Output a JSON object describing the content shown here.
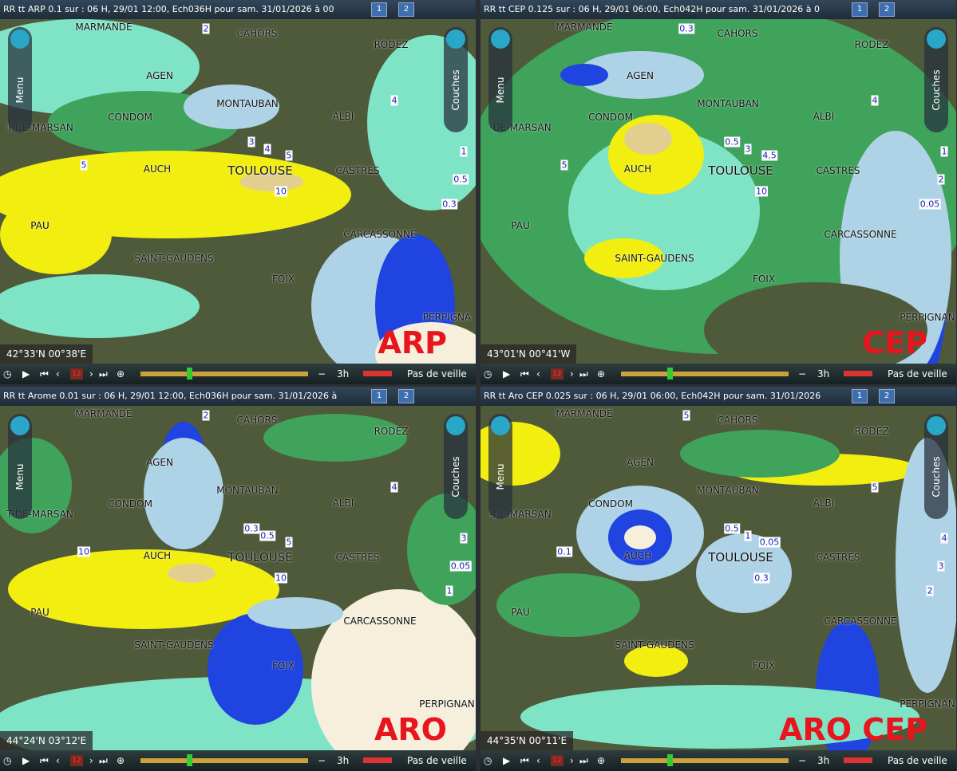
{
  "panels": [
    {
      "title": "RR tt ARP 0.1 sur : 06 H, 29/01 12:00, Ech036H pour sam. 31/01/2026 à 00",
      "window_buttons": [
        "1",
        "2"
      ],
      "menu": "Menu",
      "layers": "Couches",
      "cities": [
        "MARMANDE",
        "CAHORS",
        "RODEZ",
        "AGEN",
        "MONTAUBAN",
        "ALBI",
        "CONDOM",
        "T-DE-MARSAN",
        "AUCH",
        "TOULOUSE",
        "CASTRES",
        "PAU",
        "CARCASSONNE",
        "SAINT-GAUDENS",
        "FOIX",
        "PERPIGNA"
      ],
      "contours": [
        "10",
        "5",
        "4",
        "3",
        "2",
        "0.5",
        "0.3",
        "1",
        "5",
        "4"
      ],
      "coords": "42°33'N 00°38'E",
      "model": "ARP",
      "date_badge": "12",
      "step": "3h",
      "watch": "Pas de veille"
    },
    {
      "title": "RR tt CEP 0.125 sur : 06 H, 29/01 06:00, Ech042H pour sam. 31/01/2026 à 0",
      "window_buttons": [
        "1",
        "2"
      ],
      "menu": "Menu",
      "layers": "Couches",
      "cities": [
        "MARMANDE",
        "CAHORS",
        "RODEZ",
        "AGEN",
        "MONTAUBAN",
        "ALBI",
        "CONDOM",
        "-DE-MARSAN",
        "AUCH",
        "TOULOUSE",
        "CASTRES",
        "PAU",
        "CARCASSONNE",
        "SAINT-GAUDENS",
        "FOIX",
        "PERPIGNAN"
      ],
      "contours": [
        "10",
        "4.5",
        "3",
        "0.5",
        "0.3",
        "2",
        "0.05",
        "1",
        "5",
        "4"
      ],
      "coords": "43°01'N 00°41'W",
      "model": "CEP",
      "date_badge": "12",
      "step": "3h",
      "watch": "Pas de veille"
    },
    {
      "title": "RR tt Arome 0.01 sur : 06 H, 29/01 12:00, Ech036H pour sam. 31/01/2026 à",
      "window_buttons": [
        "1",
        "2"
      ],
      "menu": "Menu",
      "layers": "Couches",
      "cities": [
        "MARMANDE",
        "CAHORS",
        "RODEZ",
        "AGEN",
        "MONTAUBAN",
        "ALBI",
        "CONDOM",
        "T-DE-MARSAN",
        "AUCH",
        "TOULOUSE",
        "CASTRES",
        "PAU",
        "CARCASSONNE",
        "SAINT-GAUDENS",
        "FOIX",
        "PERPIGNAN"
      ],
      "contours": [
        "10",
        "5",
        "0.5",
        "0.3",
        "2",
        "0.05",
        "1",
        "3",
        "10",
        "4"
      ],
      "coords": "44°24'N 03°12'E",
      "model": "ARO",
      "date_badge": "12",
      "step": "3h",
      "watch": "Pas de veille"
    },
    {
      "title": "RR tt Aro CEP 0.025 sur : 06 H, 29/01 06:00, Ech042H pour sam. 31/01/2026",
      "window_buttons": [
        "1",
        "2"
      ],
      "menu": "Menu",
      "layers": "Couches",
      "cities": [
        "MARMANDE",
        "CAHORS",
        "RODEZ",
        "AGEN",
        "MONTAUBAN",
        "ALBI",
        "CONDOM",
        "-DE-MARSAN",
        "AUCH",
        "TOULOUSE",
        "CASTRES",
        "PAU",
        "CARCASSONNE",
        "SAINT-GAUDENS",
        "FOIX",
        "PERPIGNAN"
      ],
      "contours": [
        "0.3",
        "0.05",
        "1",
        "0.5",
        "5",
        "3",
        "2",
        "4",
        "0.1",
        "5"
      ],
      "coords": "44°35'N 00°11'E",
      "model": "ARO CEP",
      "date_badge": "12",
      "step": "3h",
      "watch": "Pas de veille"
    }
  ]
}
